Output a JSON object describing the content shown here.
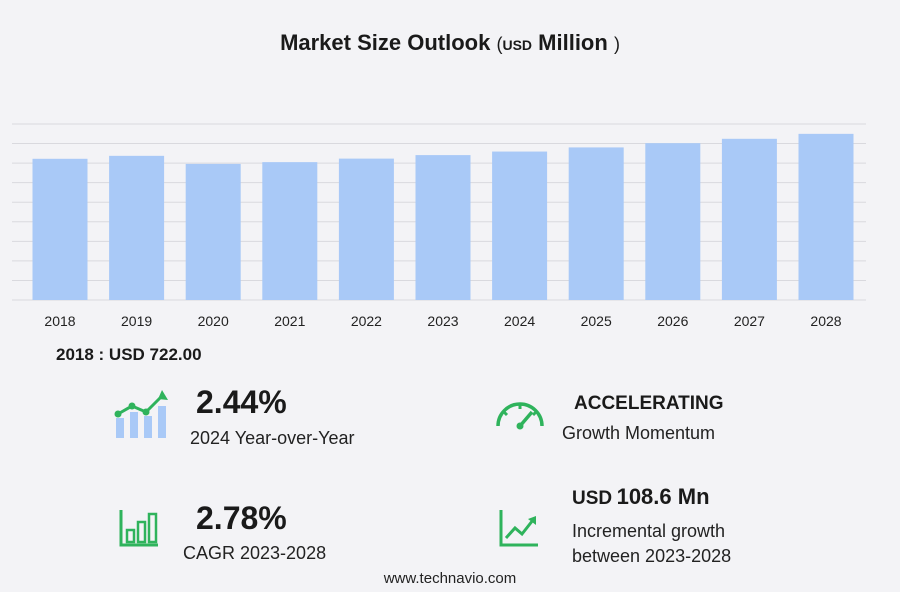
{
  "title": {
    "main": "Market Size Outlook",
    "open": "(",
    "unit": "USD",
    "unit2": "Million",
    "close": ")"
  },
  "chart_data": {
    "type": "bar",
    "categories": [
      "2018",
      "2019",
      "2020",
      "2021",
      "2022",
      "2023",
      "2024",
      "2025",
      "2026",
      "2027",
      "2028"
    ],
    "values": [
      722.0,
      737.2,
      696.0,
      705.0,
      723.0,
      741.0,
      759.1,
      780.2,
      802.0,
      824.3,
      849.6
    ],
    "ylim": [
      0,
      900
    ],
    "grid": true,
    "color": "#a9c9f7"
  },
  "base_label": "2018 : USD  722.00",
  "stats": {
    "yoy": {
      "value": "2.44%",
      "label": "2024 Year-over-Year"
    },
    "momentum": {
      "value": "ACCELERATING",
      "label": "Growth Momentum"
    },
    "cagr": {
      "value": "2.78%",
      "label": "CAGR 2023-2028"
    },
    "incremental": {
      "unit": "USD",
      "value": "108.6 Mn",
      "label1": "Incremental growth",
      "label2": "between 2023-2028"
    }
  },
  "icons": {
    "yoy": "bar-trend-icon",
    "momentum": "speedometer-icon",
    "cagr": "bar-chart-icon",
    "incremental": "line-trend-icon"
  },
  "accent": "#2fb35c",
  "footer": "www.technavio.com"
}
